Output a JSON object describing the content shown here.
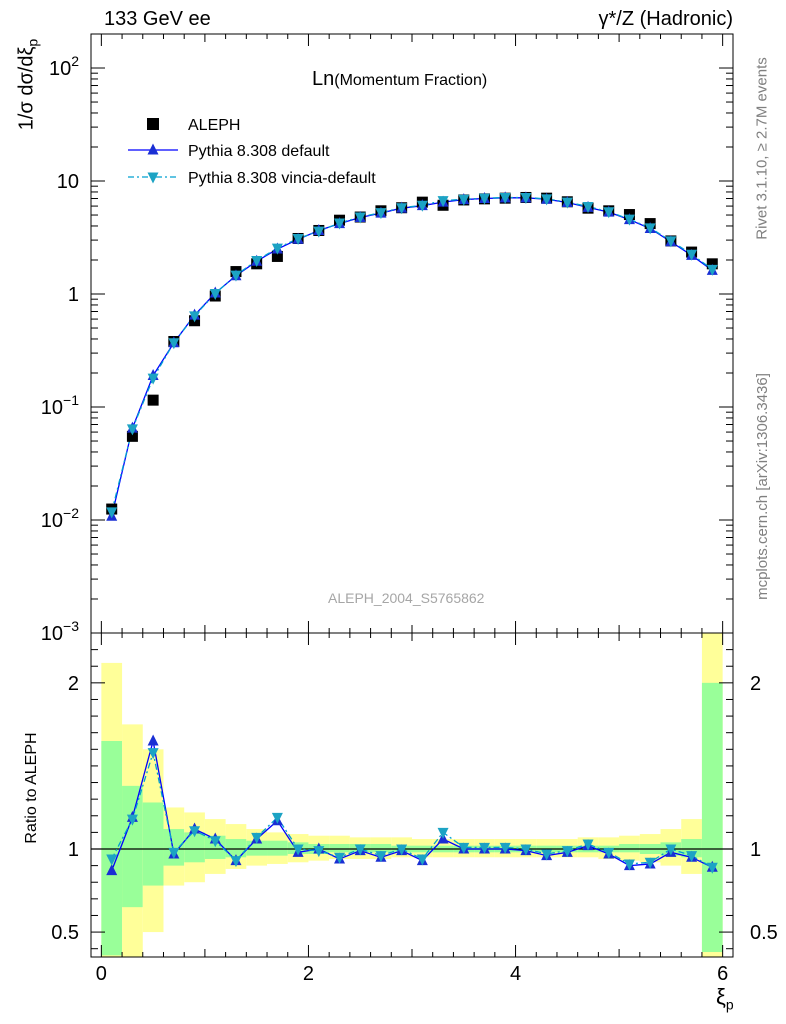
{
  "header": {
    "left": "133 GeV ee",
    "right_sym": "γ*",
    "right_rest": "/Z (Hadronic)"
  },
  "side": {
    "rivet": "Rivet 3.1.10, ≥ 2.7M events",
    "mcplots": "mcplots.cern.ch [arXiv:1306.3436]"
  },
  "chart_data": [
    {
      "type": "scatter",
      "title_main": "Ln",
      "title_sub": "(Momentum Fraction)",
      "watermark": "ALEPH_2004_S5765862",
      "ylabel": "1/σ dσ/dξ",
      "ylabel_sub": "p",
      "yscale": "log",
      "ylim": [
        0.001,
        200
      ],
      "xlim": [
        -0.1,
        6.1
      ],
      "ytick_labels": [
        {
          "v": 0.001,
          "base": "10",
          "exp": "−3"
        },
        {
          "v": 0.01,
          "base": "10",
          "exp": "−2"
        },
        {
          "v": 0.1,
          "base": "10",
          "exp": "−1"
        },
        {
          "v": 1,
          "base": "1",
          "exp": ""
        },
        {
          "v": 10,
          "base": "10",
          "exp": ""
        },
        {
          "v": 100,
          "base": "10",
          "exp": "2"
        }
      ],
      "legend": [
        "ALEPH",
        "Pythia 8.308 default",
        "Pythia 8.308 vincia-default"
      ],
      "x": [
        0.1,
        0.3,
        0.5,
        0.7,
        0.9,
        1.1,
        1.3,
        1.5,
        1.7,
        1.9,
        2.1,
        2.3,
        2.5,
        2.7,
        2.9,
        3.1,
        3.3,
        3.5,
        3.7,
        3.9,
        4.1,
        4.3,
        4.5,
        4.7,
        4.9,
        5.1,
        5.3,
        5.5,
        5.7,
        5.9
      ],
      "series": [
        {
          "name": "ALEPH",
          "values": [
            0.0125,
            0.055,
            0.115,
            0.38,
            0.58,
            0.96,
            1.58,
            1.85,
            2.15,
            3.1,
            3.65,
            4.5,
            4.8,
            5.45,
            5.8,
            6.5,
            6.1,
            6.8,
            6.95,
            7.05,
            7.15,
            7.05,
            6.55,
            5.75,
            5.45,
            5.05,
            4.2,
            2.95,
            2.35,
            1.85
          ]
        },
        {
          "name": "Pythia 8.308 default",
          "values": [
            0.0108,
            0.065,
            0.19,
            0.37,
            0.65,
            1.02,
            1.45,
            1.95,
            2.5,
            3.05,
            3.65,
            4.2,
            4.75,
            5.2,
            5.75,
            6.05,
            6.5,
            6.85,
            7.0,
            7.1,
            7.1,
            6.9,
            6.45,
            5.85,
            5.3,
            4.55,
            3.8,
            2.9,
            2.2,
            1.62
          ]
        },
        {
          "name": "Pythia 8.308 vincia-default",
          "values": [
            0.0118,
            0.064,
            0.18,
            0.37,
            0.64,
            1.01,
            1.47,
            1.98,
            2.55,
            3.1,
            3.6,
            4.25,
            4.8,
            5.25,
            5.8,
            6.1,
            6.7,
            6.9,
            7.05,
            7.15,
            7.15,
            6.95,
            6.5,
            5.95,
            5.35,
            4.6,
            3.85,
            2.95,
            2.25,
            1.65
          ]
        }
      ]
    },
    {
      "type": "line",
      "ylabel": "Ratio to ALEPH",
      "xlabel": "ξ",
      "xlabel_sub": "p",
      "ylim": [
        0.35,
        2.3
      ],
      "xlim": [
        -0.1,
        6.1
      ],
      "x_ticks": [
        0,
        2,
        4,
        6
      ],
      "y_ticks": [
        0.5,
        1,
        2
      ],
      "x": [
        0.1,
        0.3,
        0.5,
        0.7,
        0.9,
        1.1,
        1.3,
        1.5,
        1.7,
        1.9,
        2.1,
        2.3,
        2.5,
        2.7,
        2.9,
        3.1,
        3.3,
        3.5,
        3.7,
        3.9,
        4.1,
        4.3,
        4.5,
        4.7,
        4.9,
        5.1,
        5.3,
        5.5,
        5.7,
        5.9
      ],
      "bins": [
        0.0,
        0.2,
        0.4,
        0.6,
        0.8,
        1.0,
        1.2,
        1.4,
        1.6,
        1.8,
        2.0,
        2.2,
        2.4,
        2.6,
        2.8,
        3.0,
        3.2,
        3.4,
        3.6,
        3.8,
        4.0,
        4.2,
        4.4,
        4.6,
        4.8,
        5.0,
        5.2,
        5.4,
        5.6,
        5.8,
        6.0
      ],
      "band_inner": [
        [
          0.36,
          1.65
        ],
        [
          0.65,
          1.38
        ],
        [
          0.78,
          1.28
        ],
        [
          0.9,
          1.12
        ],
        [
          0.92,
          1.1
        ],
        [
          0.94,
          1.08
        ],
        [
          0.95,
          1.06
        ],
        [
          0.96,
          1.05
        ],
        [
          0.96,
          1.05
        ],
        [
          0.97,
          1.04
        ],
        [
          0.97,
          1.03
        ],
        [
          0.98,
          1.03
        ],
        [
          0.98,
          1.03
        ],
        [
          0.98,
          1.03
        ],
        [
          0.98,
          1.02
        ],
        [
          0.98,
          1.02
        ],
        [
          0.98,
          1.02
        ],
        [
          0.98,
          1.02
        ],
        [
          0.98,
          1.02
        ],
        [
          0.98,
          1.02
        ],
        [
          0.98,
          1.02
        ],
        [
          0.98,
          1.02
        ],
        [
          0.98,
          1.02
        ],
        [
          0.98,
          1.02
        ],
        [
          0.98,
          1.02
        ],
        [
          0.98,
          1.03
        ],
        [
          0.97,
          1.03
        ],
        [
          0.96,
          1.04
        ],
        [
          0.95,
          1.06
        ],
        [
          0.38,
          2.0
        ]
      ],
      "band_outer": [
        [
          0.3,
          2.12
        ],
        [
          0.3,
          1.75
        ],
        [
          0.5,
          1.6
        ],
        [
          0.78,
          1.25
        ],
        [
          0.8,
          1.22
        ],
        [
          0.85,
          1.18
        ],
        [
          0.88,
          1.15
        ],
        [
          0.9,
          1.12
        ],
        [
          0.91,
          1.1
        ],
        [
          0.92,
          1.09
        ],
        [
          0.93,
          1.08
        ],
        [
          0.94,
          1.08
        ],
        [
          0.94,
          1.07
        ],
        [
          0.94,
          1.07
        ],
        [
          0.95,
          1.07
        ],
        [
          0.95,
          1.06
        ],
        [
          0.95,
          1.06
        ],
        [
          0.95,
          1.06
        ],
        [
          0.95,
          1.06
        ],
        [
          0.95,
          1.06
        ],
        [
          0.95,
          1.06
        ],
        [
          0.95,
          1.06
        ],
        [
          0.95,
          1.06
        ],
        [
          0.95,
          1.07
        ],
        [
          0.94,
          1.07
        ],
        [
          0.93,
          1.08
        ],
        [
          0.92,
          1.09
        ],
        [
          0.9,
          1.12
        ],
        [
          0.85,
          1.18
        ],
        [
          0.3,
          2.35
        ]
      ],
      "series": [
        {
          "name": "Pythia 8.308 default",
          "values": [
            0.87,
            1.19,
            1.65,
            0.97,
            1.12,
            1.06,
            0.93,
            1.06,
            1.17,
            0.98,
            1.0,
            0.94,
            0.99,
            0.95,
            0.99,
            0.93,
            1.06,
            1.0,
            1.0,
            1.0,
            0.99,
            0.96,
            0.98,
            1.02,
            0.97,
            0.9,
            0.91,
            0.98,
            0.95,
            0.89
          ]
        },
        {
          "name": "Pythia 8.308 vincia-default",
          "values": [
            0.94,
            1.18,
            1.58,
            0.98,
            1.11,
            1.05,
            0.93,
            1.07,
            1.19,
            1.0,
            0.99,
            0.95,
            1.0,
            0.96,
            1.0,
            0.94,
            1.1,
            1.01,
            1.01,
            1.01,
            1.0,
            0.97,
            0.99,
            1.03,
            0.98,
            0.91,
            0.92,
            1.0,
            0.96,
            0.89
          ]
        }
      ]
    }
  ],
  "colors": {
    "data": "#000000",
    "default": "#0000ff",
    "vincia": "#00a0d0",
    "vincia_marker": "#1ca3c4",
    "default_marker": "#1a2fd4",
    "band_inner": "#99ff99",
    "band_outer": "#ffff99"
  }
}
